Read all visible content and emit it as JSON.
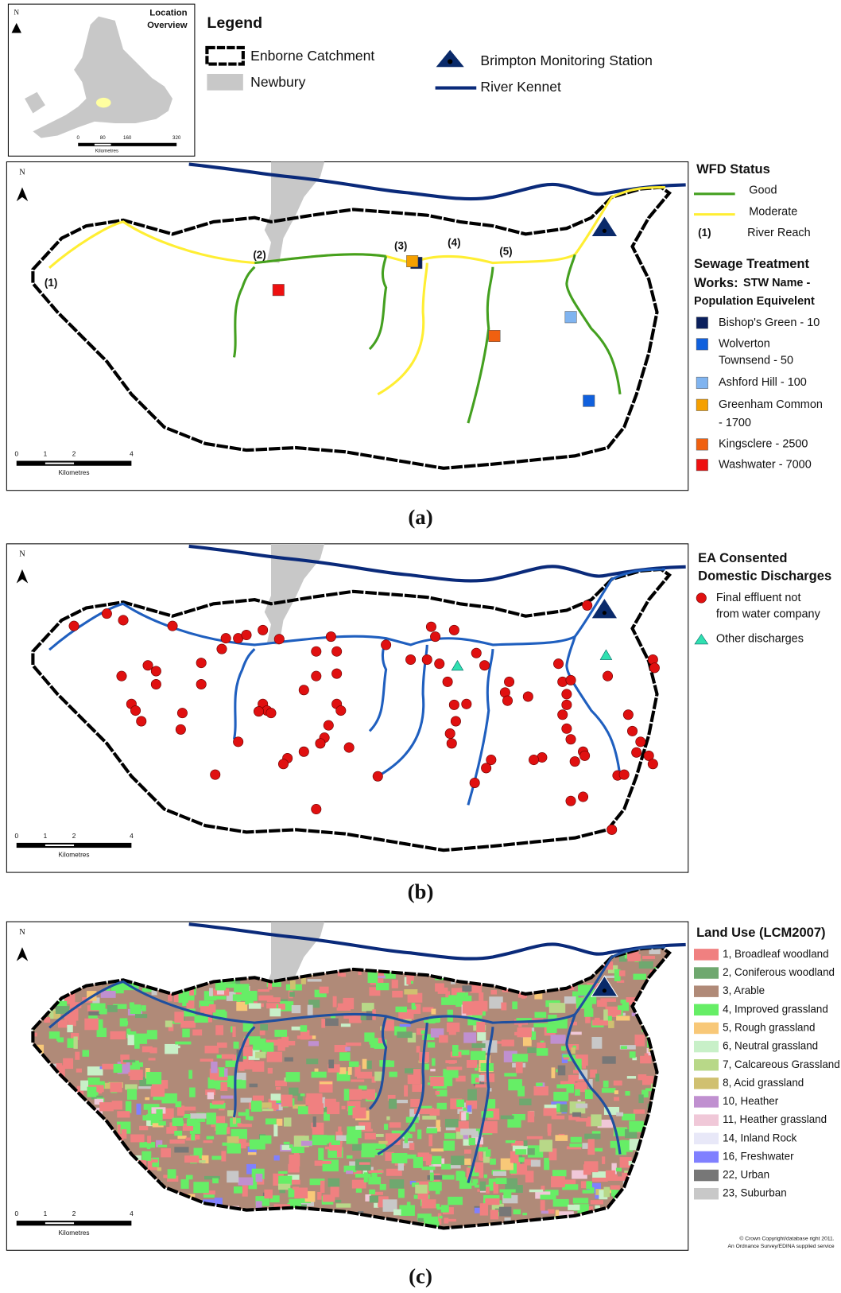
{
  "inset": {
    "north": "N",
    "title": [
      "Location",
      "Overview"
    ],
    "scale": [
      "0",
      "80",
      "160",
      "320"
    ],
    "unit": "Kilometres"
  },
  "legend": {
    "title": "Legend",
    "items": [
      "Enborne Catchment",
      "Newbury",
      "Brimpton Monitoring Station",
      "River Kennet"
    ]
  },
  "panel_a": {
    "north": "N",
    "caption": "(a)",
    "reaches": [
      "(1)",
      "(2)",
      "(3)",
      "(4)",
      "(5)"
    ],
    "wfd": {
      "title": "WFD Status",
      "good": "Good",
      "moderate": "Moderate",
      "reach_key": "(1)",
      "reach_label": "River Reach"
    },
    "stw": {
      "title": [
        "Sewage Treatment",
        "Works:",
        "STW Name -",
        "Population Equivelent"
      ],
      "items": [
        [
          "Bishop's Green - 10"
        ],
        [
          "Wolverton",
          "Townsend - 50"
        ],
        [
          "Ashford Hill - 100"
        ],
        [
          "Greenham Common",
          "- 1700"
        ],
        [
          "Kingsclere - 2500"
        ],
        [
          "Washwater - 7000"
        ]
      ]
    },
    "scale": [
      "0",
      "1",
      "2",
      "4"
    ],
    "unit": "Kilometres"
  },
  "panel_b": {
    "north": "N",
    "caption": "(b)",
    "title": [
      "EA Consented",
      "Domestic Discharges"
    ],
    "items": [
      [
        "Final effluent not",
        "from water company"
      ],
      [
        "Other discharges"
      ]
    ],
    "scale": [
      "0",
      "1",
      "2",
      "4"
    ],
    "unit": "Kilometres"
  },
  "panel_c": {
    "north": "N",
    "caption": "(c)",
    "title": "Land Use (LCM2007)",
    "items": [
      "1, Broadleaf woodland",
      "2, Coniferous woodland",
      "3, Arable",
      "4, Improved grassland",
      "5, Rough grassland",
      "6, Neutral grassland",
      "7, Calcareous Grassland",
      "8, Acid grassland",
      "10, Heather",
      "11, Heather grassland",
      "14, Inland Rock",
      "16, Freshwater",
      "22, Urban",
      "23, Suburban"
    ],
    "copyright": [
      "© Crown Copyright/database right 2011.",
      "An Ordnance Survey/EDINA supplied service"
    ],
    "scale": [
      "0",
      "1",
      "2",
      "4"
    ],
    "unit": "Kilometres"
  }
}
